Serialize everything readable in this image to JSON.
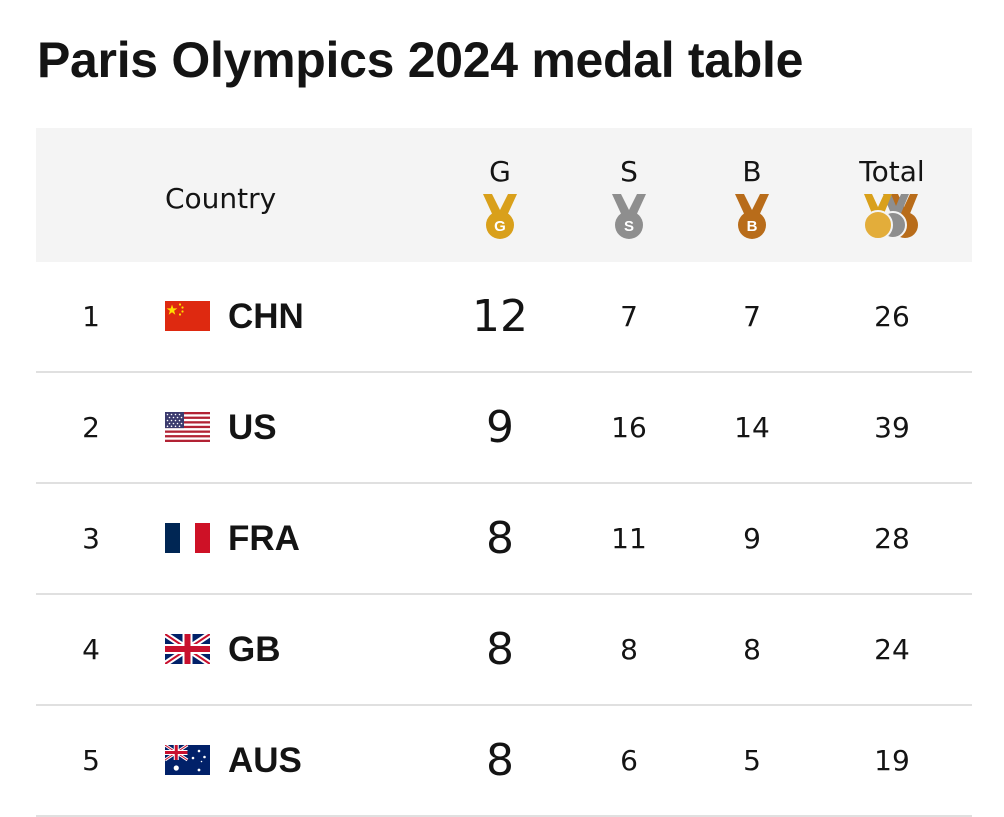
{
  "title": "Paris Olympics 2024 medal table",
  "header": {
    "country": "Country",
    "gold": "G",
    "silver": "S",
    "bronze": "B",
    "total": "Total"
  },
  "colors": {
    "gold": "#d9a01b",
    "silver": "#8e8e8e",
    "bronze": "#b86c1a",
    "header_bg": "#f4f4f4"
  },
  "rows": [
    {
      "rank": "1",
      "code": "CHN",
      "flag": "china-flag-icon",
      "gold": "12",
      "silver": "7",
      "bronze": "7",
      "total": "26"
    },
    {
      "rank": "2",
      "code": "US",
      "flag": "usa-flag-icon",
      "gold": "9",
      "silver": "16",
      "bronze": "14",
      "total": "39"
    },
    {
      "rank": "3",
      "code": "FRA",
      "flag": "france-flag-icon",
      "gold": "8",
      "silver": "11",
      "bronze": "9",
      "total": "28"
    },
    {
      "rank": "4",
      "code": "GB",
      "flag": "uk-flag-icon",
      "gold": "8",
      "silver": "8",
      "bronze": "8",
      "total": "24"
    },
    {
      "rank": "5",
      "code": "AUS",
      "flag": "australia-flag-icon",
      "gold": "8",
      "silver": "6",
      "bronze": "5",
      "total": "19"
    }
  ]
}
